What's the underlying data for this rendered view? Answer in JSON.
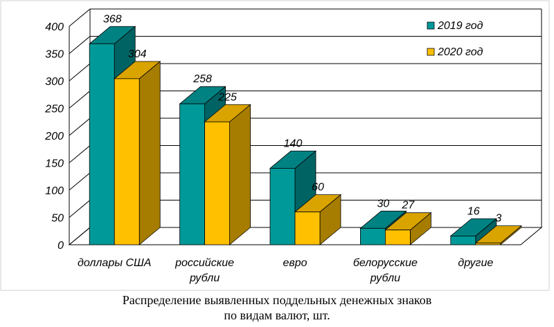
{
  "chart_data": {
    "type": "bar",
    "categories": [
      [
        "доллары США"
      ],
      [
        "российские",
        "рубли"
      ],
      [
        "евро"
      ],
      [
        "белорусские",
        "рубли"
      ],
      [
        "другие"
      ]
    ],
    "series": [
      {
        "name": "2019 год",
        "values": [
          368,
          258,
          140,
          30,
          16
        ],
        "color": "#009999"
      },
      {
        "name": "2020 год",
        "values": [
          304,
          225,
          60,
          27,
          3
        ],
        "color": "#FFC000"
      }
    ],
    "ylim": [
      0,
      400
    ],
    "yticks": [
      0,
      50,
      100,
      150,
      200,
      250,
      300,
      350,
      400
    ],
    "grid": true,
    "legend": "top-right",
    "style": "3d-columns"
  },
  "caption": {
    "line1": "Распределение выявленных поддельных денежных знаков",
    "line2": "по видам валют, шт."
  }
}
